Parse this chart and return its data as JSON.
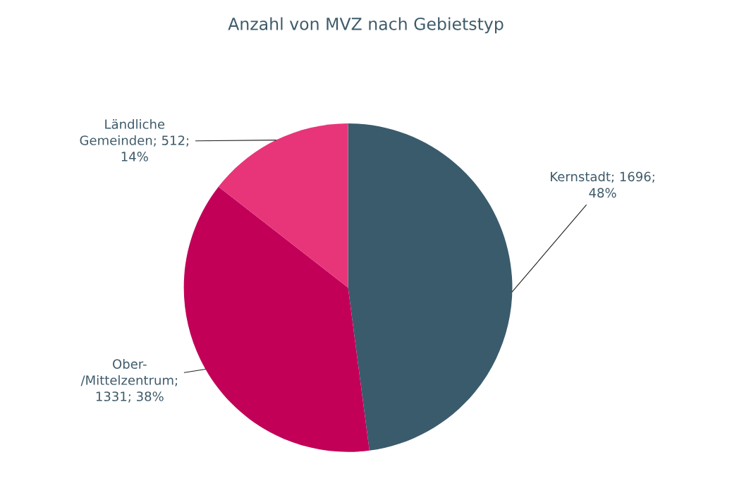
{
  "chart_data": {
    "type": "pie",
    "title": "Anzahl von MVZ nach Gebietstyp",
    "categories": [
      "Kernstadt",
      "Ober-/Mittelzentrum",
      "Ländliche Gemeinden"
    ],
    "values": [
      1696,
      1331,
      512
    ],
    "colors": [
      "#3a5b6c",
      "#c20058",
      "#e8357a"
    ],
    "value_labels": [
      "; 1696; 48%",
      "; 1331; 38%",
      "; 512; 14%"
    ],
    "legend": false
  }
}
